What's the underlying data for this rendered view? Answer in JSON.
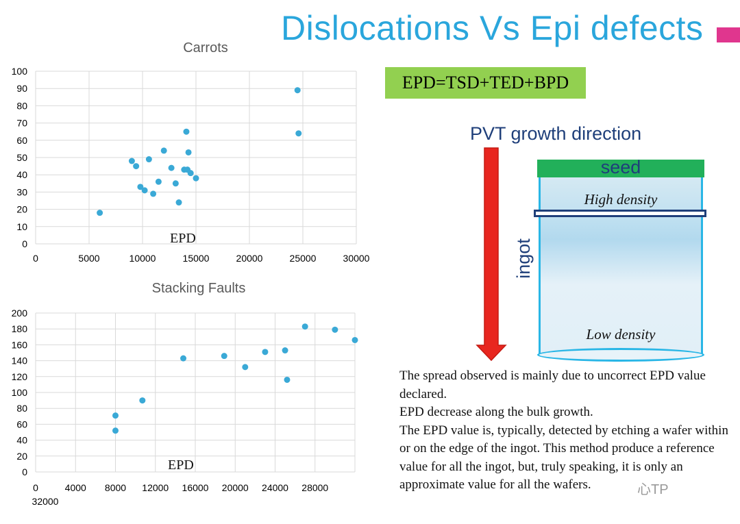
{
  "slide": {
    "title": "Dislocations Vs Epi defects",
    "formula": "EPD=TSD+TED+BPD",
    "pvt_label": "PVT growth direction",
    "seed_label": "seed",
    "high_density_label": "High density",
    "low_density_label": "Low density",
    "ingot_label": "ingot",
    "explanation": [
      "The spread observed is mainly due to uncorrect EPD value declared.",
      "EPD decrease along the bulk growth.",
      "The EPD value is, typically, detected by etching a wafer within or on the edge of the ingot. This method produce a reference value for all the ingot, but, truly speaking, it is only an approximate value for all the wafers."
    ],
    "watermark": "心TP",
    "colors": {
      "title": "#2aa6dc",
      "accent_square": "#e0368e",
      "formula_bg": "#92d050",
      "seed": "#22b05a",
      "arrow": "#e8261f",
      "ingot_border": "#29b6e6",
      "text_blue": "#1f3f7a",
      "marker": "#3aa9d6"
    }
  },
  "chart_data": [
    {
      "type": "scatter",
      "title": "Carrots",
      "xlabel": "EPD",
      "ylabel": "",
      "xlim": [
        0,
        30000
      ],
      "ylim": [
        0,
        100
      ],
      "xticks": [
        0,
        5000,
        10000,
        15000,
        20000,
        25000,
        30000
      ],
      "yticks": [
        0,
        10,
        20,
        30,
        40,
        50,
        60,
        70,
        80,
        90,
        100
      ],
      "grid": true,
      "points": [
        {
          "x": 6000,
          "y": 18
        },
        {
          "x": 9000,
          "y": 48
        },
        {
          "x": 9400,
          "y": 45
        },
        {
          "x": 9800,
          "y": 33
        },
        {
          "x": 10200,
          "y": 31
        },
        {
          "x": 10600,
          "y": 49
        },
        {
          "x": 11000,
          "y": 29
        },
        {
          "x": 11500,
          "y": 36
        },
        {
          "x": 12000,
          "y": 54
        },
        {
          "x": 12700,
          "y": 44
        },
        {
          "x": 13100,
          "y": 35
        },
        {
          "x": 13400,
          "y": 24
        },
        {
          "x": 13900,
          "y": 43
        },
        {
          "x": 14100,
          "y": 65
        },
        {
          "x": 14200,
          "y": 43
        },
        {
          "x": 14300,
          "y": 53
        },
        {
          "x": 14500,
          "y": 41
        },
        {
          "x": 15000,
          "y": 38
        },
        {
          "x": 24500,
          "y": 89
        },
        {
          "x": 24600,
          "y": 64
        }
      ]
    },
    {
      "type": "scatter",
      "title": "Stacking Faults",
      "xlabel": "EPD",
      "ylabel": "",
      "xlim": [
        0,
        32000
      ],
      "ylim": [
        0,
        200
      ],
      "xticks": [
        0,
        4000,
        8000,
        12000,
        16000,
        20000,
        24000,
        28000,
        32000
      ],
      "yticks": [
        0,
        20,
        40,
        60,
        80,
        100,
        120,
        140,
        160,
        180,
        200
      ],
      "grid": true,
      "points": [
        {
          "x": 8000,
          "y": 71
        },
        {
          "x": 8000,
          "y": 52
        },
        {
          "x": 10700,
          "y": 90
        },
        {
          "x": 14800,
          "y": 143
        },
        {
          "x": 18900,
          "y": 146
        },
        {
          "x": 21000,
          "y": 132
        },
        {
          "x": 23000,
          "y": 151
        },
        {
          "x": 25000,
          "y": 153
        },
        {
          "x": 25200,
          "y": 116
        },
        {
          "x": 27000,
          "y": 183
        },
        {
          "x": 30000,
          "y": 179
        },
        {
          "x": 32000,
          "y": 166
        }
      ]
    }
  ]
}
